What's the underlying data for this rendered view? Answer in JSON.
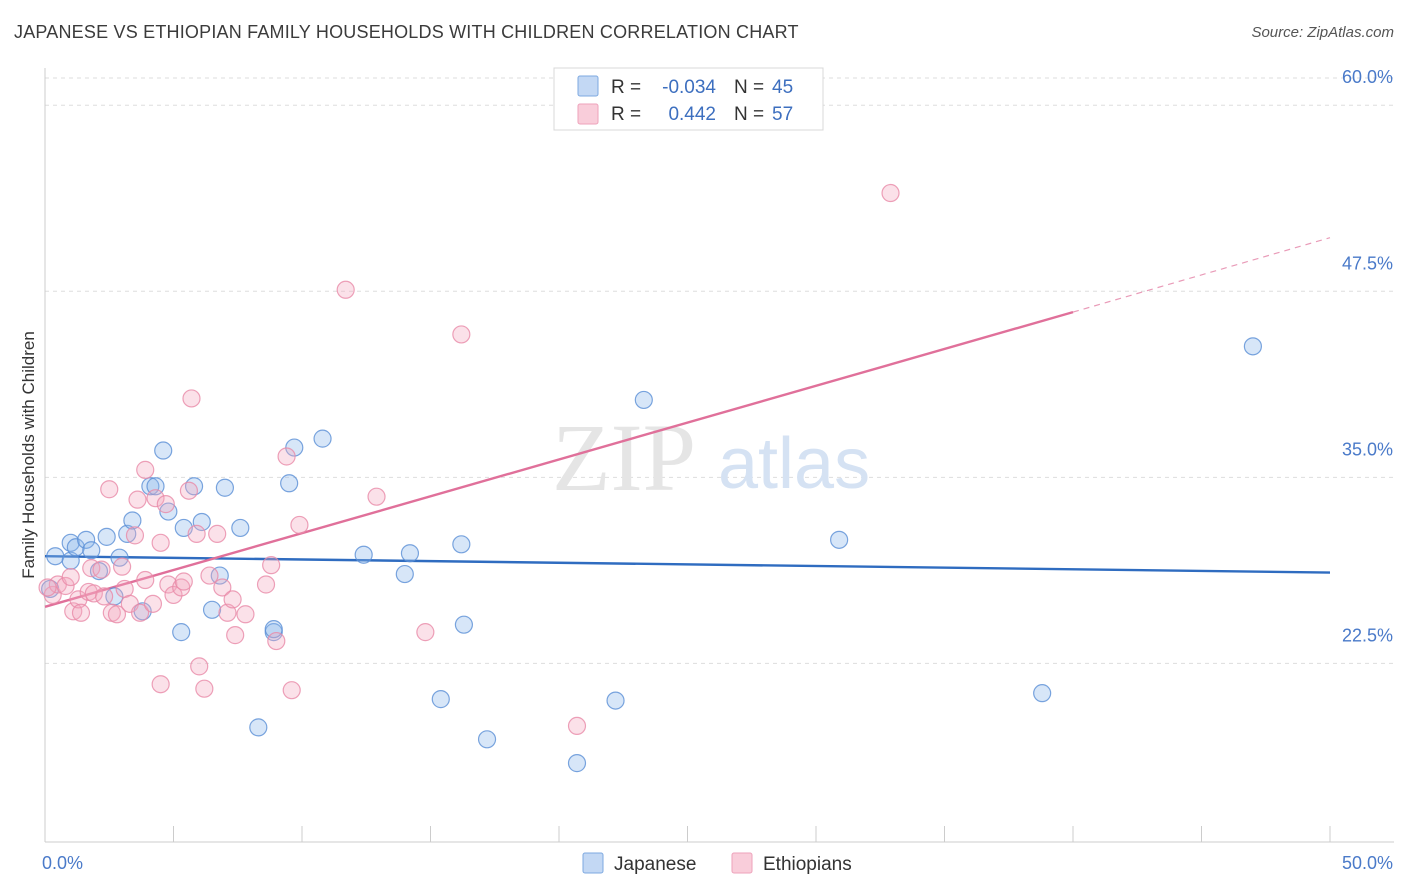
{
  "title": "JAPANESE VS ETHIOPIAN FAMILY HOUSEHOLDS WITH CHILDREN CORRELATION CHART",
  "source": "Source: ZipAtlas.com",
  "watermark": {
    "zip": "ZIP",
    "atlas": "atlas"
  },
  "legend": {
    "r_label": "R =",
    "n_label": "N =",
    "rows": [
      {
        "r": "-0.034",
        "n": "45",
        "color": "#8db8ea"
      },
      {
        "r": "0.442",
        "n": "57",
        "color": "#f4a8c0"
      }
    ]
  },
  "chart_data": {
    "type": "scatter",
    "title": "JAPANESE VS ETHIOPIAN FAMILY HOUSEHOLDS WITH CHILDREN CORRELATION CHART",
    "xlabel": "",
    "ylabel": "Family Households with Children",
    "xlim": [
      0,
      50
    ],
    "ylim": [
      10.5,
      62.5
    ],
    "x_tick_labels": [
      "0.0%",
      "50.0%"
    ],
    "y_ticks": [
      22.5,
      35.0,
      47.5,
      60.0
    ],
    "y_tick_labels": [
      "22.5%",
      "35.0%",
      "47.5%",
      "60.0%"
    ],
    "grid": true,
    "legend_position": "top-center",
    "series": [
      {
        "name": "Japanese",
        "color": "#8db8ea",
        "stroke": "#5a8fd6",
        "trend": {
          "x": [
            0,
            50
          ],
          "y": [
            29.7,
            28.6
          ],
          "color": "#2f6cc0"
        },
        "points": [
          [
            0.4,
            29.7
          ],
          [
            1.0,
            29.4
          ],
          [
            1.0,
            30.6
          ],
          [
            1.2,
            30.3
          ],
          [
            1.6,
            30.8
          ],
          [
            1.8,
            30.1
          ],
          [
            2.1,
            28.7
          ],
          [
            2.4,
            31.0
          ],
          [
            2.7,
            27.0
          ],
          [
            2.9,
            29.6
          ],
          [
            3.2,
            31.2
          ],
          [
            3.4,
            32.1
          ],
          [
            3.8,
            26.0
          ],
          [
            4.1,
            34.4
          ],
          [
            4.3,
            34.4
          ],
          [
            4.6,
            36.8
          ],
          [
            4.8,
            32.7
          ],
          [
            5.3,
            24.6
          ],
          [
            5.4,
            31.6
          ],
          [
            5.8,
            34.4
          ],
          [
            6.1,
            32.0
          ],
          [
            6.5,
            26.1
          ],
          [
            6.8,
            28.4
          ],
          [
            7.0,
            34.3
          ],
          [
            7.6,
            31.6
          ],
          [
            8.3,
            18.2
          ],
          [
            8.9,
            24.6
          ],
          [
            8.9,
            24.8
          ],
          [
            9.5,
            34.6
          ],
          [
            9.7,
            37.0
          ],
          [
            10.8,
            37.6
          ],
          [
            12.4,
            29.8
          ],
          [
            14.0,
            28.5
          ],
          [
            14.2,
            29.9
          ],
          [
            15.4,
            20.1
          ],
          [
            16.2,
            30.5
          ],
          [
            16.3,
            25.1
          ],
          [
            17.2,
            17.4
          ],
          [
            20.7,
            15.8
          ],
          [
            22.2,
            20.0
          ],
          [
            23.3,
            40.2
          ],
          [
            30.9,
            30.8
          ],
          [
            38.8,
            20.5
          ],
          [
            47.0,
            43.8
          ],
          [
            0.2,
            27.5
          ]
        ]
      },
      {
        "name": "Ethiopians",
        "color": "#f4a8c0",
        "stroke": "#e889a8",
        "trend": {
          "x": [
            0,
            40
          ],
          "y": [
            26.3,
            46.1
          ],
          "dash_to": [
            50,
            51.1
          ],
          "color": "#e0709a"
        },
        "points": [
          [
            0.3,
            27.1
          ],
          [
            0.5,
            27.8
          ],
          [
            0.8,
            27.7
          ],
          [
            1.0,
            28.3
          ],
          [
            1.1,
            26.0
          ],
          [
            1.3,
            26.8
          ],
          [
            1.4,
            25.9
          ],
          [
            1.7,
            27.3
          ],
          [
            1.8,
            28.9
          ],
          [
            1.9,
            27.2
          ],
          [
            2.2,
            28.8
          ],
          [
            2.3,
            27.0
          ],
          [
            2.5,
            34.2
          ],
          [
            2.6,
            25.9
          ],
          [
            2.8,
            25.8
          ],
          [
            3.0,
            29.0
          ],
          [
            3.1,
            27.5
          ],
          [
            3.3,
            26.5
          ],
          [
            3.5,
            31.1
          ],
          [
            3.6,
            33.5
          ],
          [
            3.7,
            25.9
          ],
          [
            3.9,
            28.1
          ],
          [
            3.9,
            35.5
          ],
          [
            4.2,
            26.5
          ],
          [
            4.3,
            33.6
          ],
          [
            4.5,
            30.6
          ],
          [
            4.5,
            21.1
          ],
          [
            4.7,
            33.2
          ],
          [
            4.8,
            27.8
          ],
          [
            5.0,
            27.1
          ],
          [
            5.3,
            27.6
          ],
          [
            5.4,
            28.0
          ],
          [
            5.6,
            34.1
          ],
          [
            5.7,
            40.3
          ],
          [
            5.9,
            31.2
          ],
          [
            6.0,
            22.3
          ],
          [
            6.2,
            20.8
          ],
          [
            6.4,
            28.4
          ],
          [
            6.7,
            31.2
          ],
          [
            6.9,
            27.6
          ],
          [
            7.1,
            25.9
          ],
          [
            7.3,
            26.8
          ],
          [
            7.4,
            24.4
          ],
          [
            7.8,
            25.8
          ],
          [
            8.6,
            27.8
          ],
          [
            8.8,
            29.1
          ],
          [
            9.0,
            24.0
          ],
          [
            9.4,
            36.4
          ],
          [
            9.6,
            20.7
          ],
          [
            9.9,
            31.8
          ],
          [
            11.7,
            47.6
          ],
          [
            12.9,
            33.7
          ],
          [
            14.8,
            24.6
          ],
          [
            16.2,
            44.6
          ],
          [
            20.7,
            18.3
          ],
          [
            32.9,
            54.1
          ],
          [
            0.1,
            27.6
          ]
        ]
      }
    ]
  }
}
